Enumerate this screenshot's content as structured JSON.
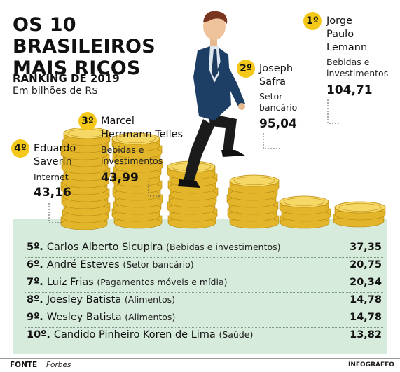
{
  "title": "OS 10 BRASILEIROS MAIS RICOS",
  "subtitle": "RANKING DE 2019",
  "unit": "Em bilhões de R$",
  "top4": [
    {
      "rank": "1º",
      "name": "Jorge Paulo Lemann",
      "name_lines": [
        "Jorge",
        "Paulo",
        "Lemann"
      ],
      "sector": "Bebidas e investimentos",
      "sector_lines": [
        "Bebidas e",
        "investimentos"
      ],
      "value_label": "104,71"
    },
    {
      "rank": "2º",
      "name": "Joseph Safra",
      "name_lines": [
        "Joseph",
        "Safra"
      ],
      "sector": "Setor bancário",
      "sector_lines": [
        "Setor",
        "bancário"
      ],
      "value_label": "95,04"
    },
    {
      "rank": "3º",
      "name": "Marcel Herrmann Telles",
      "name_lines": [
        "Marcel",
        "Herrmann Telles"
      ],
      "sector": "Bebidas e investimentos",
      "sector_lines": [
        "Bebidas e",
        "investimentos"
      ],
      "value_label": "43,99"
    },
    {
      "rank": "4º",
      "name": "Eduardo Saverin",
      "name_lines": [
        "Eduardo",
        "Saverin"
      ],
      "sector": "Internet",
      "sector_lines": [
        "Internet"
      ],
      "value_label": "43,16"
    }
  ],
  "others": [
    {
      "rank": "5º.",
      "name": "Carlos Alberto Sicupira",
      "sector": "(Bebidas e investimentos)",
      "value_label": "37,35"
    },
    {
      "rank": "6º.",
      "name": "André Esteves",
      "sector": "(Setor bancário)",
      "value_label": "20,75"
    },
    {
      "rank": "7º.",
      "name": "Luiz Frias",
      "sector": "(Pagamentos móveis e mídia)",
      "value_label": "20,34"
    },
    {
      "rank": "8º.",
      "name": "Joesley Batista",
      "sector": "(Alimentos)",
      "value_label": "14,78"
    },
    {
      "rank": "9º.",
      "name": "Wesley Batista",
      "sector": "(Alimentos)",
      "value_label": "14,78"
    },
    {
      "rank": "10º.",
      "name": "Candido Pinheiro Koren de Lima",
      "sector": "(Saúde)",
      "value_label": "13,82"
    }
  ],
  "source_label": "FONTE",
  "source_value": "Forbes",
  "brand": "INFOGRAFFO",
  "colors": {
    "badge": "#f3c81a",
    "band": "#d6ebdc",
    "coin": "#e2b52a",
    "coin_light": "#f5d866",
    "coin_edge": "#b88a10",
    "suit": "#1d3f66",
    "pants": "#1b1b1b"
  },
  "chart_data": {
    "type": "bar",
    "title": "OS 10 BRASILEIROS MAIS RICOS",
    "subtitle": "RANKING DE 2019",
    "ylabel": "Em bilhões de R$",
    "categories": [
      "Jorge Paulo Lemann",
      "Joseph Safra",
      "Marcel Herrmann Telles",
      "Eduardo Saverin",
      "Carlos Alberto Sicupira",
      "André Esteves",
      "Luiz Frias",
      "Joesley Batista",
      "Wesley Batista",
      "Candido Pinheiro Koren de Lima"
    ],
    "values": [
      104.71,
      95.04,
      43.99,
      43.16,
      37.35,
      20.75,
      20.34,
      14.78,
      14.78,
      13.82
    ],
    "coin_stack_counts": [
      13,
      12,
      8,
      6,
      3,
      2
    ],
    "grid": false
  }
}
